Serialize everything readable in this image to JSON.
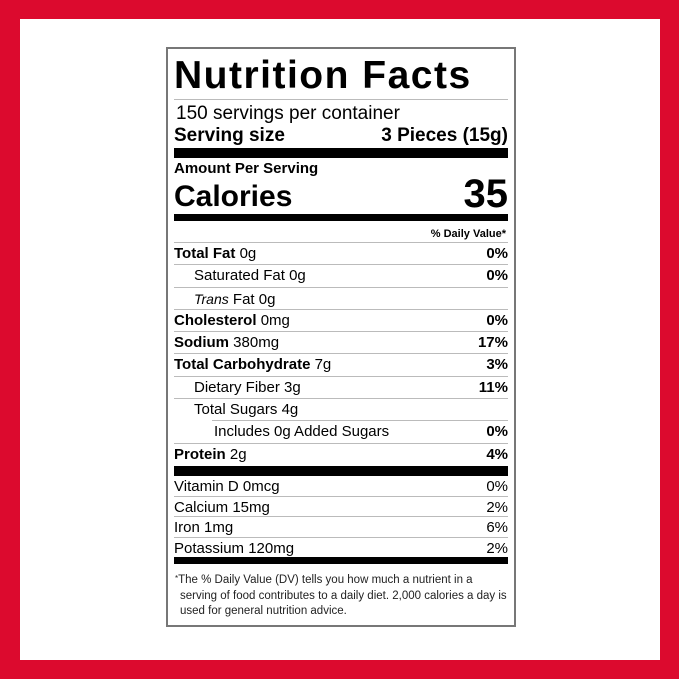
{
  "colors": {
    "frame": "#dc0a2e",
    "label_border": "#777777"
  },
  "title": "Nutrition Facts",
  "servings_per_container": "150 servings per container",
  "serving_size": {
    "label": "Serving size",
    "value": "3 Pieces (15g)"
  },
  "amount_per_serving": "Amount Per Serving",
  "calories": {
    "label": "Calories",
    "value": "35"
  },
  "daily_value_header": "% Daily Value*",
  "nutrients": [
    {
      "name": "Total Fat",
      "amount": "0g",
      "dv": "0%"
    },
    {
      "name": "Saturated Fat",
      "amount": "0g",
      "dv": "0%"
    },
    {
      "name": "Trans",
      "name_suffix": "Fat",
      "amount": "0g",
      "dv": ""
    },
    {
      "name": "Cholesterol",
      "amount": "0mg",
      "dv": "0%"
    },
    {
      "name": "Sodium",
      "amount": "380mg",
      "dv": "17%"
    },
    {
      "name": "Total Carbohydrate",
      "amount": "7g",
      "dv": "3%"
    },
    {
      "name": "Dietary Fiber",
      "amount": "3g",
      "dv": "11%"
    },
    {
      "name": "Total Sugars",
      "amount": "4g",
      "dv": ""
    },
    {
      "name": "Includes 0g Added Sugars",
      "amount": "",
      "dv": "0%"
    },
    {
      "name": "Protein",
      "amount": "2g",
      "dv": "4%"
    }
  ],
  "vitamins": [
    {
      "name": "Vitamin D 0mcg",
      "dv": "0%"
    },
    {
      "name": "Calcium 15mg",
      "dv": "2%"
    },
    {
      "name": "Iron 1mg",
      "dv": "6%"
    },
    {
      "name": "Potassium 120mg",
      "dv": "2%"
    }
  ],
  "footnote": "The % Daily Value (DV) tells you how much a nutrient in a serving of food contributes to a daily diet. 2,000 calories a day is used for general nutrition advice.",
  "footnote_marker": "*"
}
